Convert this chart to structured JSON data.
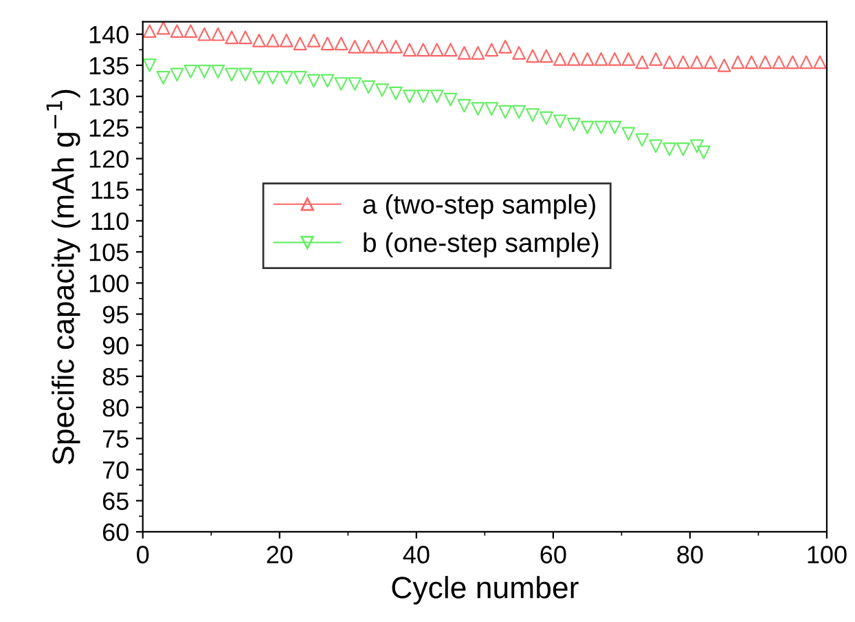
{
  "chart_data": {
    "type": "scatter",
    "xlabel": "Cycle number",
    "ylabel": "Specific capacity (mAh g$^{−1}$)",
    "xlim": [
      0,
      100
    ],
    "xticks": [
      0,
      20,
      40,
      60,
      80,
      100
    ],
    "ylim": [
      60,
      142
    ],
    "yticks": [
      60,
      65,
      70,
      75,
      80,
      85,
      90,
      95,
      100,
      105,
      110,
      115,
      120,
      125,
      130,
      135,
      140
    ],
    "grid": false,
    "legend": "center",
    "series": [
      {
        "name": "a (two-step sample)",
        "color": "#ff6666",
        "marker": "triangle",
        "x": [
          1,
          3,
          5,
          7,
          9,
          11,
          13,
          15,
          17,
          19,
          21,
          23,
          25,
          27,
          29,
          31,
          33,
          35,
          37,
          39,
          41,
          43,
          45,
          47,
          49,
          51,
          53,
          55,
          57,
          59,
          61,
          63,
          65,
          67,
          69,
          71,
          73,
          75,
          77,
          79,
          81,
          83,
          85,
          87,
          89,
          91,
          93,
          95,
          97,
          99
        ],
        "values": [
          140.5,
          141,
          140.5,
          140.5,
          140,
          140,
          139.5,
          139.5,
          139,
          139,
          139,
          138.5,
          139,
          138.5,
          138.5,
          138,
          138,
          138,
          138,
          137.5,
          137.5,
          137.5,
          137.5,
          137,
          137,
          137.5,
          138,
          137,
          136.5,
          136.5,
          136,
          136,
          136,
          136,
          136,
          136,
          135.5,
          136,
          135.5,
          135.5,
          135.5,
          135.5,
          135,
          135.5,
          135.5,
          135.5,
          135.5,
          135.5,
          135.5,
          135.5
        ]
      },
      {
        "name": "b (one-step sample)",
        "color": "#66ee66",
        "marker": "triangle-down",
        "x": [
          1,
          3,
          5,
          7,
          9,
          11,
          13,
          15,
          17,
          19,
          21,
          23,
          25,
          27,
          29,
          31,
          33,
          35,
          37,
          39,
          41,
          43,
          45,
          47,
          49,
          51,
          53,
          55,
          57,
          59,
          61,
          63,
          65,
          67,
          69,
          71,
          73,
          75,
          77,
          79,
          81,
          82
        ],
        "values": [
          135,
          133,
          133.5,
          134,
          134,
          134,
          133.5,
          133.5,
          133,
          133,
          133,
          133,
          132.5,
          132.5,
          132,
          132,
          131.5,
          131,
          130.5,
          130,
          130,
          130,
          129.5,
          128.5,
          128,
          128,
          127.5,
          127.5,
          127,
          126.5,
          126,
          125.5,
          125,
          125,
          125,
          124,
          123,
          122,
          121.5,
          121.5,
          122,
          121
        ]
      }
    ]
  }
}
